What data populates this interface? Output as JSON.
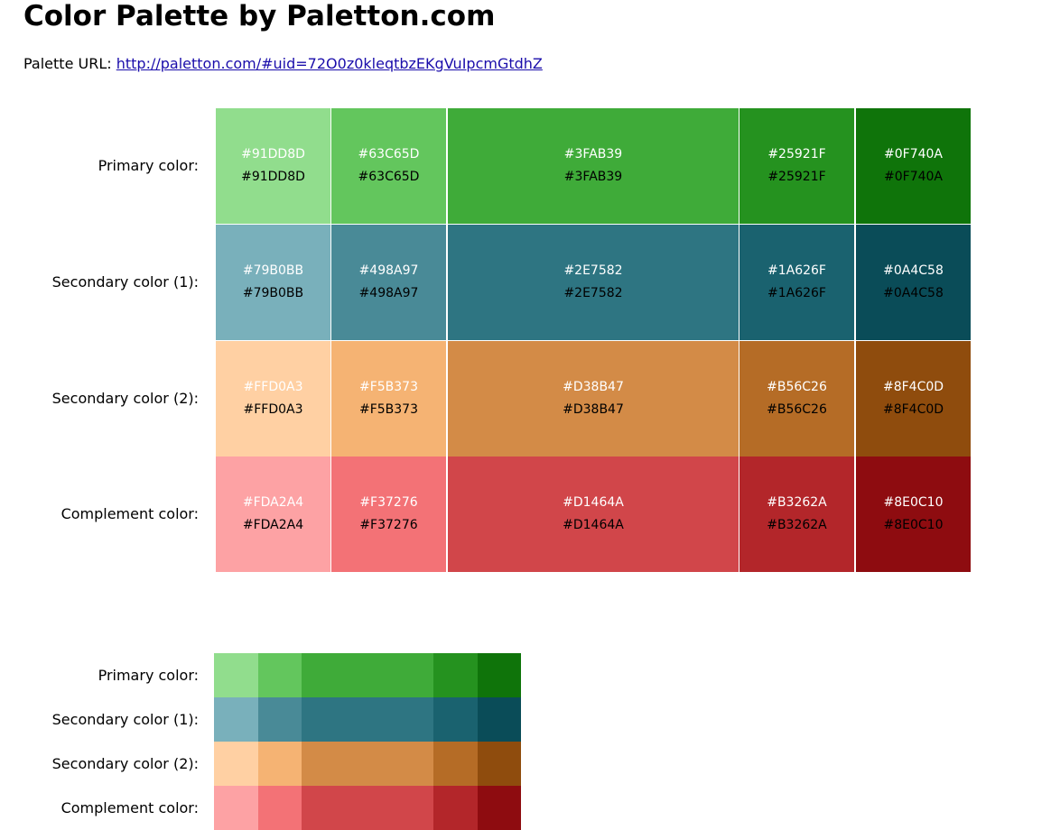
{
  "page": {
    "title": "Color Palette by Paletton.com",
    "url_label": "Palette URL:",
    "url_text": "http://paletton.com/#uid=72O0z0kleqtbzEKgVuIpcmGtdhZ"
  },
  "palette": {
    "rows": [
      {
        "label": "Primary color:",
        "colors": [
          "#91DD8D",
          "#63C65D",
          "#3FAB39",
          "#25921F",
          "#0F740A"
        ]
      },
      {
        "label": "Secondary color (1):",
        "colors": [
          "#79B0BB",
          "#498A97",
          "#2E7582",
          "#1A626F",
          "#0A4C58"
        ]
      },
      {
        "label": "Secondary color (2):",
        "colors": [
          "#FFD0A3",
          "#F5B373",
          "#D38B47",
          "#B56C26",
          "#8F4C0D"
        ]
      },
      {
        "label": "Complement color:",
        "colors": [
          "#FDA2A4",
          "#F37276",
          "#D1464A",
          "#B3262A",
          "#8E0C10"
        ]
      }
    ]
  }
}
